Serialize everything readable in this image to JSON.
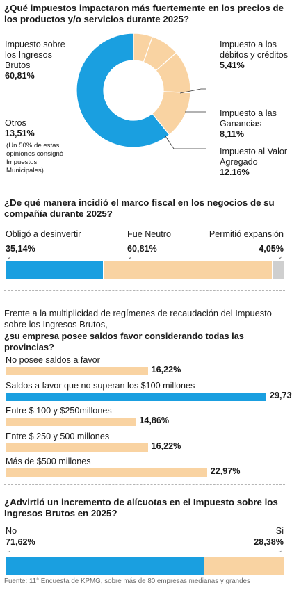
{
  "colors": {
    "blue": "#1a9fe0",
    "peach": "#f9d3a2",
    "gray": "#cfcfcf"
  },
  "section1": {
    "title": "¿Qué impuestos impactaron más fuertemente en los precios de los productos y/o servicios durante 2025?",
    "chart_data": {
      "type": "pie",
      "slices": [
        {
          "label": "Impuesto sobre los Ingresos Brutos",
          "value": 60.81,
          "display": "60,81%",
          "color": "#1a9fe0"
        },
        {
          "label": "Impuesto a los débitos y créditos",
          "value": 5.41,
          "display": "5,41%",
          "color": "#f9d3a2"
        },
        {
          "label": "Impuesto a las Ganancias",
          "value": 8.11,
          "display": "8,11%",
          "color": "#f9d3a2"
        },
        {
          "label": "Impuesto al Valor Agregado",
          "value": 12.16,
          "display": "12.16%",
          "color": "#f9d3a2"
        },
        {
          "label": "Otros",
          "value": 13.51,
          "display": "13,51%",
          "color": "#f9d3a2"
        }
      ],
      "note": "(Un 50% de estas opiniones consignó Impuestos Municipales)"
    },
    "labels": {
      "iibb_l1": "Impuesto sobre",
      "iibb_l2": "los Ingresos",
      "iibb_l3": "Brutos",
      "deb_l1": "Impuesto a los",
      "deb_l2": "débitos y créditos",
      "gan_l1": "Impuesto a las",
      "gan_l2": "Ganancias",
      "iva_l1": "Impuesto al Valor",
      "iva_l2": "Agregado",
      "otros": "Otros",
      "note_l1": "(Un 50% de estas",
      "note_l2": "opiniones consignó",
      "note_l3": "Impuestos",
      "note_l4": "Municipales)"
    }
  },
  "section2": {
    "title": "¿De qué manera incidió el marco fiscal en los negocios de su compañía durante 2025?",
    "chart_data": {
      "type": "bar",
      "stacked": true,
      "categories": [
        "Obligó a desinvertir",
        "Fue Neutro",
        "Permitió expansión"
      ],
      "values": [
        35.14,
        60.81,
        4.05
      ],
      "display": [
        "35,14%",
        "60,81%",
        "4,05%"
      ],
      "colors": [
        "#1a9fe0",
        "#f9d3a2",
        "#cfcfcf"
      ]
    }
  },
  "section3": {
    "intro_l1": "Frente a la multiplicidad de regímenes de recaudación del Impuesto",
    "intro_l2": "sobre los Ingresos Brutos,",
    "title": "¿su empresa posee saldos favor considerando todas las provincias?",
    "chart_data": {
      "type": "bar",
      "orientation": "horizontal",
      "categories": [
        "No posee saldos a favor",
        "Saldos a favor que no superan los $100 millones",
        "Entre $ 100 y $250millones",
        "Entre $ 250 y 500 millones",
        "Más de $500 millones"
      ],
      "values": [
        16.22,
        29.73,
        14.86,
        16.22,
        22.97
      ],
      "display": [
        "16,22%",
        "29,73%",
        "14,86%",
        "16,22%",
        "22,97%"
      ],
      "highlight": "Saldos a favor que no superan los $100 millones"
    }
  },
  "section4": {
    "title": "¿Advirtió un incremento de alícuotas en el Impuesto sobre los Ingresos Brutos en 2025?",
    "chart_data": {
      "type": "bar",
      "stacked": true,
      "categories": [
        "No",
        "Si"
      ],
      "values": [
        71.62,
        28.38
      ],
      "display": [
        "71,62%",
        "28,38%"
      ],
      "colors": [
        "#1a9fe0",
        "#f9d3a2"
      ]
    }
  },
  "source": "Fuente: 11° Encuesta de KPMG, sobre más de 80 empresas medianas y grandes"
}
